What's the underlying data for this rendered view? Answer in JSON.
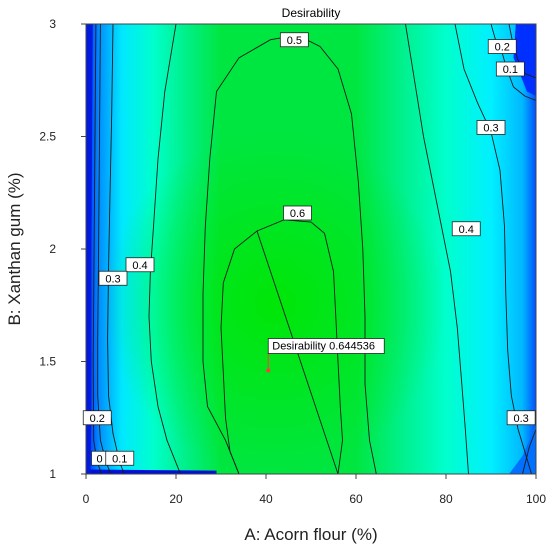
{
  "chart_data": {
    "type": "contour",
    "title": "Desirability",
    "xlabel": "A: Acorn flour (%)",
    "ylabel": "B: Xanthan gum (%)",
    "xlim": [
      0,
      100
    ],
    "ylim": [
      1,
      3
    ],
    "x_ticks": [
      "0",
      "20",
      "40",
      "60",
      "80",
      "100"
    ],
    "y_ticks": [
      "1",
      "1.5",
      "2",
      "2.5",
      "3"
    ],
    "levels": [
      0,
      0.1,
      0.2,
      0.3,
      0.4,
      0.5,
      0.6
    ],
    "contour_labels": [
      {
        "text": "0.5",
        "x": 46.3,
        "y": 2.93
      },
      {
        "text": "0.6",
        "x": 47.0,
        "y": 2.16
      },
      {
        "text": "0.4",
        "x": 12.0,
        "y": 1.93
      },
      {
        "text": "0.3",
        "x": 6.0,
        "y": 1.87
      },
      {
        "text": "0.2",
        "x": 2.5,
        "y": 1.25
      },
      {
        "text": "0",
        "x": 3.0,
        "y": 1.07
      },
      {
        "text": "0.1",
        "x": 7.5,
        "y": 1.07
      },
      {
        "text": "0.2",
        "x": 92.5,
        "y": 2.9
      },
      {
        "text": "0.1",
        "x": 94.3,
        "y": 2.8
      },
      {
        "text": "0.3",
        "x": 90.0,
        "y": 2.54
      },
      {
        "text": "0.4",
        "x": 84.5,
        "y": 2.09
      },
      {
        "text": "0.3",
        "x": 96.7,
        "y": 1.25
      }
    ],
    "optimum": {
      "label": "Desirability",
      "value": "0.644536",
      "x": 40.5,
      "y": 1.46
    },
    "colors": {
      "high": "#00e600",
      "mid": "#00ffff",
      "low": "#0000ff"
    }
  }
}
